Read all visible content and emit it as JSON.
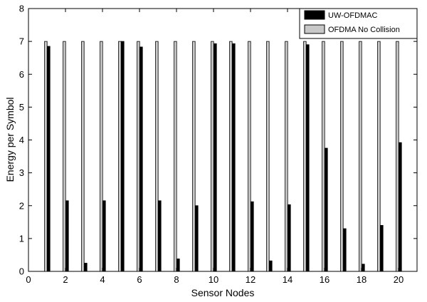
{
  "chart_data": {
    "type": "bar",
    "xlabel": "Sensor Nodes",
    "ylabel": "Energy per Symbol",
    "xlim": [
      0,
      21
    ],
    "ylim": [
      0,
      8
    ],
    "x_ticks": [
      0,
      2,
      4,
      6,
      8,
      10,
      12,
      14,
      16,
      18,
      20
    ],
    "y_ticks": [
      0,
      1,
      2,
      3,
      4,
      5,
      6,
      7,
      8
    ],
    "categories": [
      1,
      2,
      3,
      4,
      5,
      6,
      7,
      8,
      9,
      10,
      11,
      12,
      13,
      14,
      15,
      16,
      17,
      18,
      19,
      20
    ],
    "grid": false,
    "legend_position": "top-right",
    "series": [
      {
        "name": "UW-OFDMAC",
        "color": "#000000",
        "values": [
          6.85,
          2.15,
          0.25,
          2.15,
          7.0,
          6.83,
          2.15,
          0.38,
          2.0,
          6.93,
          6.93,
          2.12,
          0.32,
          2.03,
          6.9,
          3.75,
          1.3,
          0.22,
          1.4,
          3.92
        ]
      },
      {
        "name": "OFDMA No Collision",
        "color": "#c8c8c8",
        "values": [
          7,
          7,
          7,
          7,
          7,
          7,
          7,
          7,
          7,
          7,
          7,
          7,
          7,
          7,
          7,
          7,
          7,
          7,
          7,
          7
        ]
      }
    ]
  }
}
